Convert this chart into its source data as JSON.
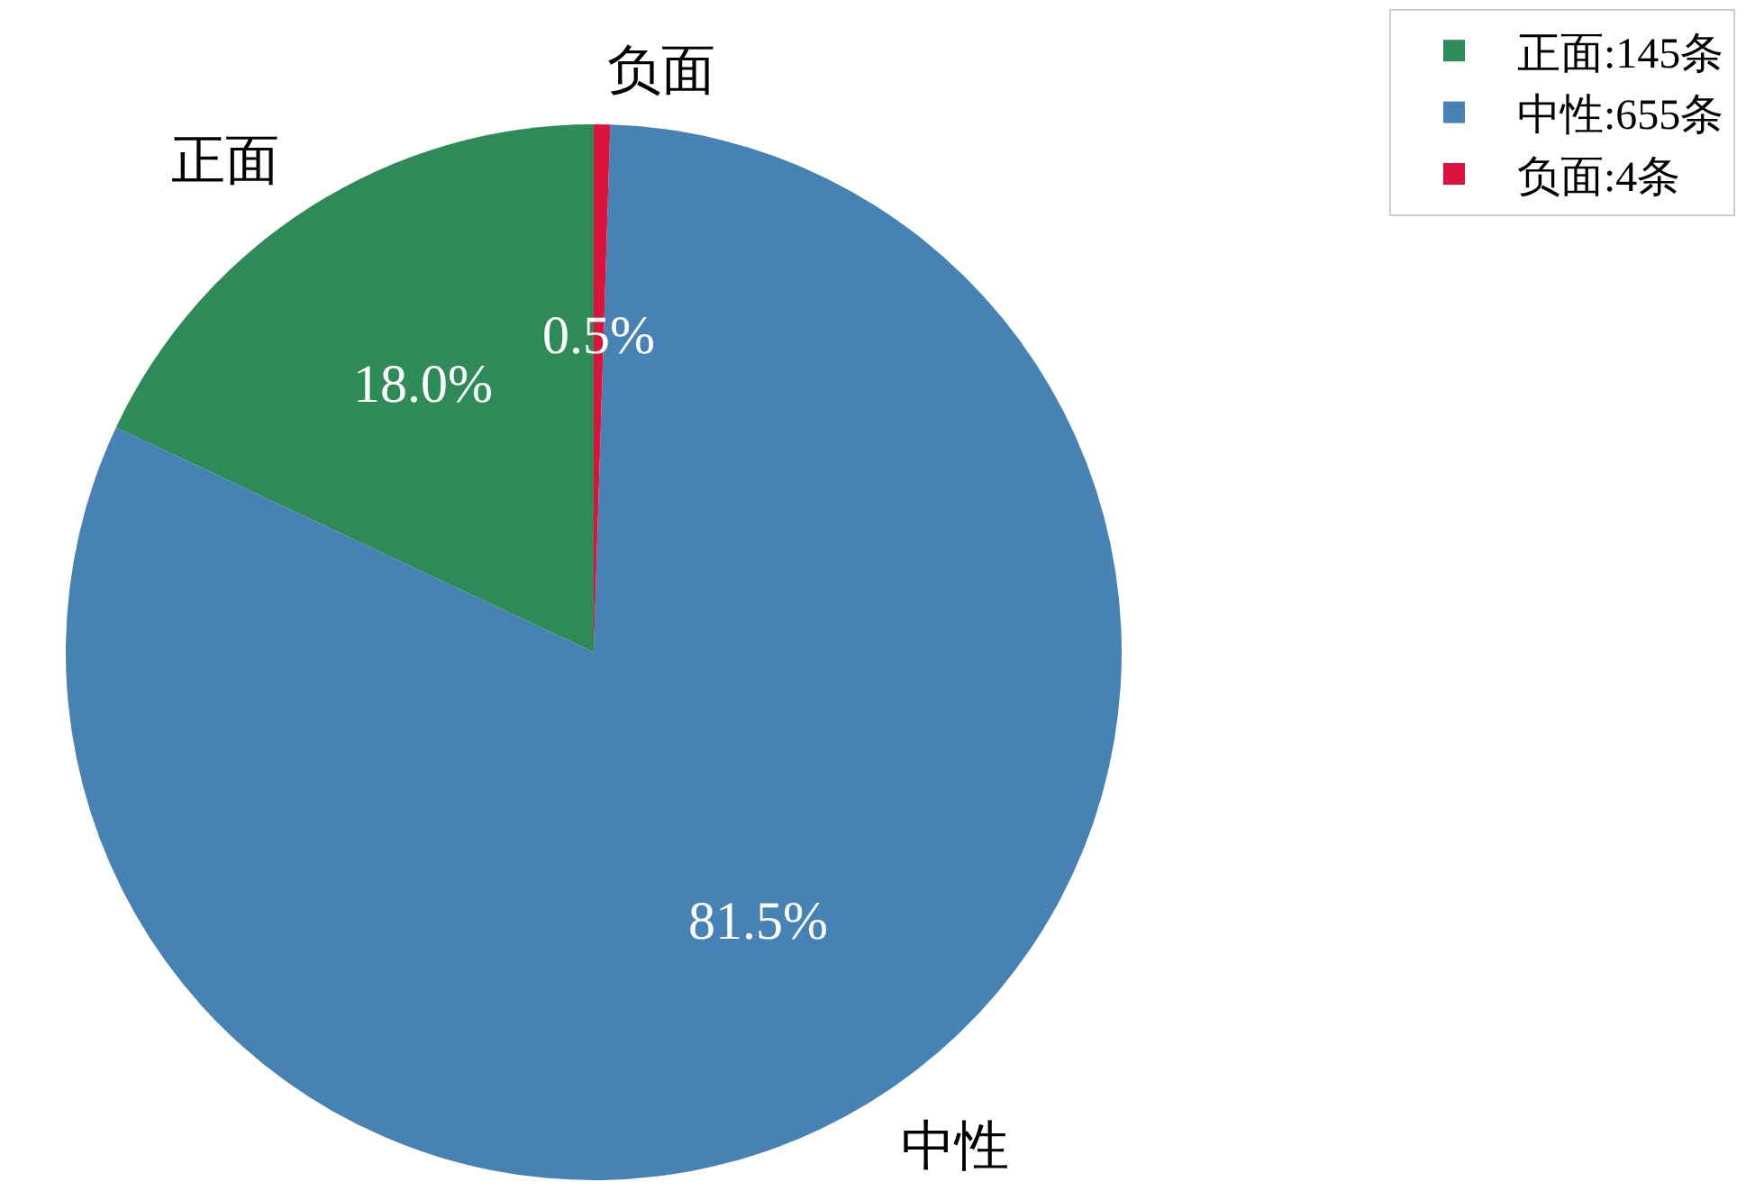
{
  "chart_data": {
    "type": "pie",
    "categories": [
      "正面:145条",
      "中性:655条",
      "负面:4条"
    ],
    "values": [
      18.0,
      81.5,
      0.5
    ],
    "colors": [
      "#2e8b57",
      "#4682b4",
      "#dc143c"
    ],
    "value_labels": [
      "18.0%",
      "81.5%",
      "0.5%"
    ],
    "annotations": [
      "正面",
      "中性",
      "负面"
    ],
    "legend": "top right"
  }
}
